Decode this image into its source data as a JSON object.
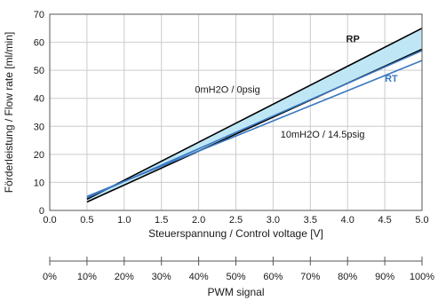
{
  "chart_data": {
    "type": "line",
    "xlabel": "Steuerspannung / Control voltage [V]",
    "ylabel": "Förderleistung / Flow rate [ml/min]",
    "xlim": [
      0,
      5
    ],
    "ylim": [
      0,
      70
    ],
    "x_ticks": [
      "0.0",
      "0.5",
      "1.0",
      "1.5",
      "2.0",
      "2.5",
      "3.0",
      "3.5",
      "4.0",
      "4.5",
      "5.0"
    ],
    "y_ticks": [
      "0",
      "10",
      "20",
      "30",
      "40",
      "50",
      "60",
      "70"
    ],
    "grid": true,
    "series": [
      {
        "name": "RP",
        "color": "#000000",
        "line": "upper",
        "x": [
          0.5,
          5.0
        ],
        "y": [
          4.0,
          65.0
        ]
      },
      {
        "name": "RP",
        "color": "#000000",
        "line": "lower",
        "x": [
          0.5,
          5.0
        ],
        "y": [
          3.0,
          57.5
        ]
      },
      {
        "name": "RT",
        "color": "#3a78c2",
        "line": "upper",
        "x": [
          0.5,
          5.0
        ],
        "y": [
          4.5,
          57.0
        ]
      },
      {
        "name": "RT",
        "color": "#3a78c2",
        "line": "lower",
        "x": [
          0.5,
          5.0
        ],
        "y": [
          5.0,
          53.5
        ]
      }
    ],
    "fill_band": {
      "color": "#bfe6f5",
      "between": [
        "RP upper",
        "RP lower"
      ]
    },
    "annotations": {
      "rp": "RP",
      "rt": "RT",
      "upper_condition": "0mH2O / 0psig",
      "lower_condition": "10mH2O / 14.5psig"
    },
    "secondary_axis": {
      "label": "PWM signal",
      "ticks": [
        "0%",
        "10%",
        "20%",
        "30%",
        "40%",
        "50%",
        "60%",
        "70%",
        "80%",
        "90%",
        "100%"
      ]
    }
  }
}
